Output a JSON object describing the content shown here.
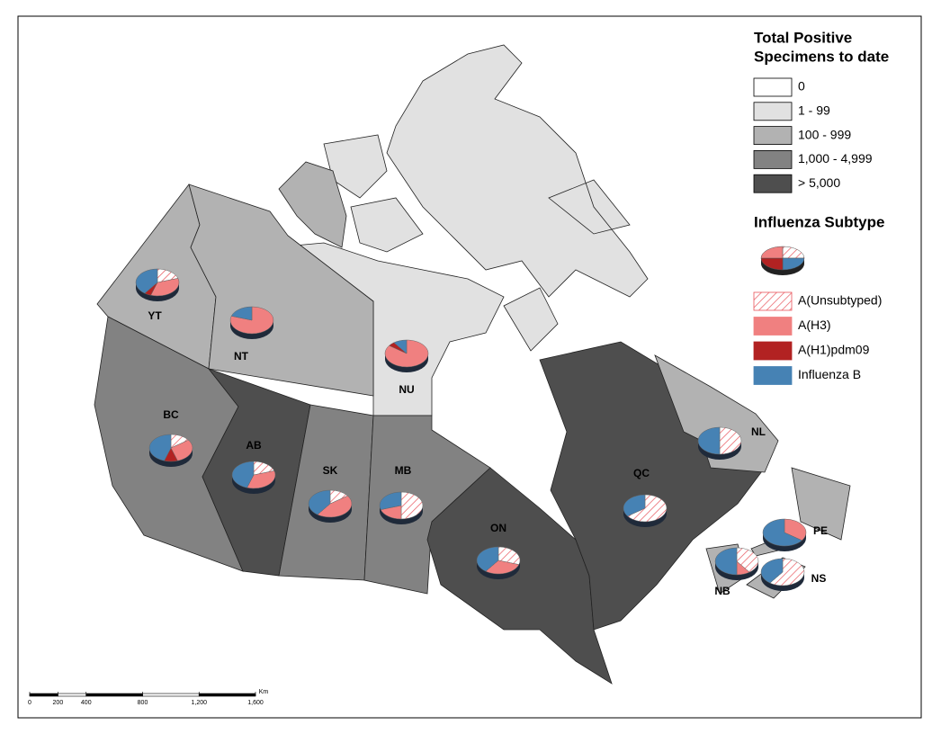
{
  "legend": {
    "title_lines": [
      "Total Positive",
      "Specimens to date"
    ],
    "classes": [
      {
        "label": "0",
        "color": "#ffffff"
      },
      {
        "label": "1 - 99",
        "color": "#e1e1e1"
      },
      {
        "label": "100 - 999",
        "color": "#b2b2b2"
      },
      {
        "label": "1,000 - 4,999",
        "color": "#828282"
      },
      {
        "label": "> 5,000",
        "color": "#4e4e4e"
      }
    ],
    "subtype_title": "Influenza Subtype",
    "subtypes": [
      {
        "name": "A(Unsubtyped)",
        "color": "#e8535a",
        "hatched": true
      },
      {
        "name": "A(H3)",
        "color": "#f08080"
      },
      {
        "name": "A(H1)pdm09",
        "color": "#b22222"
      },
      {
        "name": "Influenza B",
        "color": "#4682b4"
      }
    ]
  },
  "provinces": [
    {
      "code": "YT",
      "shares": [
        20,
        35,
        5,
        40
      ]
    },
    {
      "code": "NT",
      "shares": [
        0,
        80,
        0,
        20
      ]
    },
    {
      "code": "NU",
      "shares": [
        0,
        85,
        5,
        10
      ]
    },
    {
      "code": "BC",
      "shares": [
        15,
        30,
        10,
        45
      ]
    },
    {
      "code": "AB",
      "shares": [
        20,
        35,
        0,
        45
      ]
    },
    {
      "code": "SK",
      "shares": [
        15,
        45,
        0,
        40
      ]
    },
    {
      "code": "MB",
      "shares": [
        50,
        20,
        0,
        30
      ]
    },
    {
      "code": "ON",
      "shares": [
        30,
        30,
        0,
        40
      ]
    },
    {
      "code": "QC",
      "shares": [
        65,
        0,
        0,
        35
      ]
    },
    {
      "code": "NL",
      "shares": [
        50,
        0,
        0,
        50
      ]
    },
    {
      "code": "PE",
      "shares": [
        0,
        35,
        0,
        65
      ]
    },
    {
      "code": "NB",
      "shares": [
        40,
        10,
        0,
        50
      ]
    },
    {
      "code": "NS",
      "shares": [
        60,
        0,
        0,
        40
      ]
    }
  ],
  "scale": {
    "unit": "Km",
    "max": 1600,
    "ticks": [
      0,
      200,
      400,
      800,
      {
        "value": 1200,
        "label": "1,200"
      },
      {
        "value": 1600,
        "label": "1,600"
      }
    ]
  }
}
